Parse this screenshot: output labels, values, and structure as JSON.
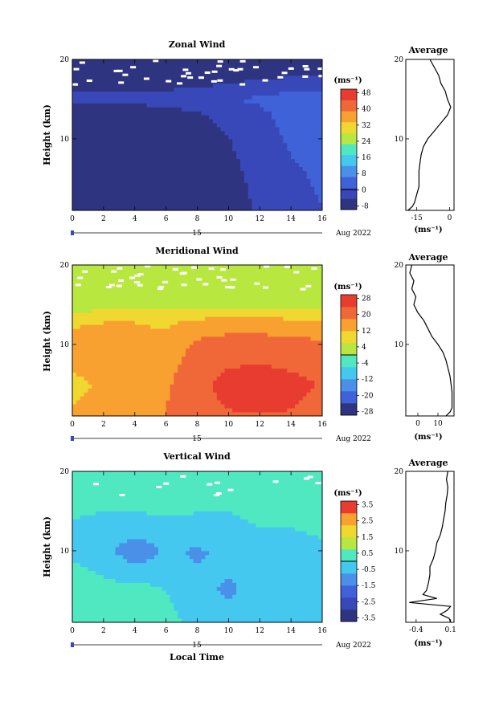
{
  "chart_data": [
    {
      "type": "heatmap",
      "title": "Zonal Wind",
      "ylabel": "Height (km)",
      "xlim": [
        0,
        16
      ],
      "ylim": [
        1,
        20
      ],
      "x_ticks": [
        "0",
        "2",
        "4",
        "6",
        "8",
        "10",
        "12",
        "14",
        "16"
      ],
      "y_ticks": [
        "10",
        "20"
      ],
      "day_marker": "15",
      "date_label": "Aug 2022",
      "colorbar": {
        "unit": "(ms⁻¹)",
        "ticks": [
          "48",
          "40",
          "32",
          "24",
          "16",
          "8",
          "0",
          "-8"
        ],
        "levels": [
          -8,
          0,
          8,
          16,
          24,
          32,
          40,
          48
        ],
        "colors": [
          "#2e3480",
          "#3848b8",
          "#3f62d8",
          "#4a90e8",
          "#44c8f0",
          "#50e8c0",
          "#b8e840",
          "#f0d830",
          "#f8a030",
          "#f06838",
          "#e83c30"
        ]
      },
      "grid": {
        "times": [
          0,
          2,
          4,
          6,
          8,
          10,
          12,
          14,
          16
        ],
        "heights": [
          1,
          5,
          10,
          13,
          15,
          17,
          20
        ],
        "values": [
          [
            -9,
            -9,
            -9,
            -9,
            -9,
            -6,
            -2,
            0,
            2
          ],
          [
            -9,
            -9,
            -9,
            -9,
            -9,
            -5,
            -1,
            1,
            3
          ],
          [
            -9,
            -9,
            -9,
            -8,
            -6,
            -3,
            0,
            3,
            5
          ],
          [
            -7,
            -7,
            -7,
            -6,
            -4,
            -1,
            1,
            4,
            6
          ],
          [
            -1,
            -1,
            -1,
            0,
            1,
            2,
            3,
            5,
            6
          ],
          [
            -5,
            -5,
            -5,
            -5,
            -4,
            -3,
            -2,
            -1,
            -1
          ],
          [
            -8,
            -8,
            -8,
            -8,
            -8,
            -8,
            -8,
            -8,
            -8
          ]
        ]
      },
      "average_profile": {
        "title": "Average",
        "xlabel": "(ms⁻¹)",
        "x_ticks": [
          "-15",
          "0"
        ],
        "y_ticks": [
          "10",
          "20"
        ],
        "xlim": [
          -20,
          2
        ],
        "heights": [
          1,
          1.5,
          2,
          3,
          4,
          5,
          6,
          7,
          8,
          9,
          10,
          11,
          12,
          13,
          14,
          15,
          16,
          17,
          18,
          19,
          20
        ],
        "values": [
          -19,
          -17,
          -16,
          -15,
          -14,
          -14,
          -14,
          -13.5,
          -13,
          -12,
          -10,
          -7,
          -4,
          -1,
          0.5,
          -1,
          -2,
          -4,
          -5,
          -7,
          -9
        ]
      }
    },
    {
      "type": "heatmap",
      "title": "Meridional Wind",
      "ylabel": "Height (km)",
      "xlim": [
        0,
        16
      ],
      "ylim": [
        1,
        20
      ],
      "x_ticks": [
        "0",
        "2",
        "4",
        "6",
        "8",
        "10",
        "12",
        "14",
        "16"
      ],
      "y_ticks": [
        "10",
        "20"
      ],
      "day_marker": "15",
      "date_label": "Aug 2022",
      "colorbar": {
        "unit": "(ms⁻¹)",
        "ticks": [
          "28",
          "20",
          "12",
          "4",
          "-4",
          "-12",
          "-20",
          "-28"
        ],
        "levels": [
          -28,
          -20,
          -12,
          -4,
          4,
          12,
          20,
          28
        ],
        "colors": [
          "#2e3480",
          "#3f62d8",
          "#4a90e8",
          "#44c8f0",
          "#50e8c0",
          "#b8e840",
          "#f0d830",
          "#f8a030",
          "#f06838",
          "#e83c30"
        ]
      },
      "grid": {
        "times": [
          0,
          2,
          4,
          6,
          8,
          10,
          12,
          14,
          16
        ],
        "heights": [
          1,
          5,
          10,
          13,
          15,
          17,
          20
        ],
        "values": [
          [
            12,
            12,
            14,
            17,
            21,
            22,
            22,
            22,
            20
          ],
          [
            10,
            12,
            14,
            16,
            21,
            24,
            25,
            24,
            22
          ],
          [
            14,
            14,
            14,
            13,
            18,
            20,
            20,
            19,
            18
          ],
          [
            10,
            11,
            11,
            10,
            12,
            13,
            13,
            12,
            12
          ],
          [
            2,
            3,
            3,
            3,
            4,
            4,
            4,
            4,
            4
          ],
          [
            1,
            1,
            1,
            1,
            1,
            1,
            1,
            1,
            1
          ],
          [
            2,
            2,
            2,
            2,
            2,
            2,
            2,
            2,
            2
          ]
        ]
      },
      "average_profile": {
        "title": "Average",
        "xlabel": "(ms⁻¹)",
        "x_ticks": [
          "0",
          "10"
        ],
        "y_ticks": [
          "10",
          "20"
        ],
        "xlim": [
          -6,
          18
        ],
        "heights": [
          1,
          1.5,
          2,
          3,
          4,
          5,
          6,
          7,
          8,
          9,
          10,
          11,
          12,
          13,
          14,
          15,
          16,
          17,
          18,
          19,
          20
        ],
        "values": [
          14,
          16,
          17,
          17,
          17,
          16.5,
          16,
          15,
          14,
          12.5,
          10,
          7,
          5,
          3,
          0,
          -2,
          -1,
          -3,
          -2,
          -4,
          -3
        ]
      }
    },
    {
      "type": "heatmap",
      "title": "Vertical Wind",
      "ylabel": "Height (km)",
      "xlabel": "Local Time",
      "xlim": [
        0,
        16
      ],
      "ylim": [
        1,
        20
      ],
      "x_ticks": [
        "0",
        "2",
        "4",
        "6",
        "8",
        "10",
        "12",
        "14",
        "16"
      ],
      "y_ticks": [
        "10",
        "20"
      ],
      "day_marker": "15",
      "date_label": "Aug 2022",
      "colorbar": {
        "unit": "(ms⁻¹)",
        "ticks": [
          "3.5",
          "2.5",
          "1.5",
          "0.5",
          "-0.5",
          "-1.5",
          "-2.5",
          "-3.5"
        ],
        "levels": [
          -3.5,
          -2.5,
          -1.5,
          -0.5,
          0.5,
          1.5,
          2.5,
          3.5
        ],
        "colors": [
          "#2e3480",
          "#3848b8",
          "#3f62d8",
          "#4a90e8",
          "#44c8f0",
          "#50e8c0",
          "#b8e840",
          "#f0d830",
          "#f8a030",
          "#e83c30"
        ]
      },
      "grid": {
        "times": [
          0,
          2,
          4,
          6,
          8,
          10,
          12,
          14,
          16
        ],
        "heights": [
          1,
          5,
          10,
          13,
          15,
          17,
          20
        ],
        "values": [
          [
            0.6,
            0.4,
            0.5,
            0.2,
            -0.2,
            -0.4,
            -0.6,
            -0.5,
            -0.4
          ],
          [
            0.5,
            0.2,
            0.3,
            0.0,
            -0.5,
            -0.8,
            -0.5,
            -0.2,
            -0.3
          ],
          [
            -0.2,
            -0.4,
            -1.2,
            -0.6,
            -0.8,
            -0.5,
            -0.3,
            -0.2,
            -0.1
          ],
          [
            -0.1,
            -0.2,
            -0.3,
            -0.2,
            -0.1,
            -0.1,
            0.0,
            0.0,
            0.1
          ],
          [
            0.1,
            0.0,
            0.0,
            0.1,
            0.0,
            0.0,
            0.1,
            0.1,
            0.0
          ],
          [
            0.2,
            0.1,
            0.1,
            0.0,
            0.1,
            0.1,
            0.0,
            0.1,
            0.1
          ],
          [
            0.1,
            0.1,
            0.1,
            0.1,
            0.1,
            0.1,
            0.1,
            0.1,
            0.1
          ]
        ]
      },
      "average_profile": {
        "title": "Average",
        "xlabel": "(ms⁻¹)",
        "x_ticks": [
          "-0.4",
          "0.1"
        ],
        "y_ticks": [
          "10",
          "20"
        ],
        "xlim": [
          -0.55,
          0.15
        ],
        "heights": [
          1,
          1.5,
          2,
          2.5,
          3,
          3.5,
          4,
          4.5,
          5,
          6,
          7,
          8,
          9,
          10,
          11,
          12,
          13,
          14,
          15,
          16,
          17,
          18,
          19,
          20
        ],
        "values": [
          0.1,
          0.08,
          -0.05,
          0.05,
          0.1,
          -0.5,
          -0.1,
          -0.3,
          -0.25,
          -0.22,
          -0.2,
          -0.2,
          -0.15,
          -0.12,
          -0.1,
          -0.05,
          -0.02,
          0.0,
          0.02,
          0.03,
          0.05,
          0.06,
          0.04,
          0.06
        ]
      }
    }
  ]
}
